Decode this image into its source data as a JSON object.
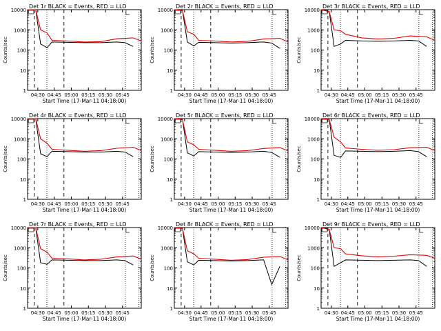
{
  "figure": {
    "common_xlabel": "Start Time (17-Mar-11 04:18:00)",
    "common_ylabel": "Counts/sec"
  },
  "chart_data": [
    {
      "type": "line",
      "title": "Det 1r BLACK = Events, RED = LLD",
      "xlabel": "Start Time (17-Mar-11 04:18:00)",
      "ylabel": "Counts/sec",
      "yscale": "log",
      "ylim": [
        1,
        10000
      ],
      "xlim": [
        4.25,
        4.95
      ],
      "x_ticks": [
        "04:30",
        "04:45",
        "05:00",
        "05:15",
        "05:30",
        "05:45"
      ],
      "y_ticks": [
        "1",
        "10",
        "100",
        "1000",
        "10000"
      ],
      "vlines_dotted": [
        4.5,
        5.5
      ],
      "vlines_dashed": [
        4.25,
        4.75
      ],
      "red_lld": [
        [
          4.25,
          10000
        ],
        [
          4.3,
          10000
        ],
        [
          4.33,
          1000
        ],
        [
          4.37,
          700
        ],
        [
          4.4,
          300
        ],
        [
          4.5,
          280
        ],
        [
          4.6,
          250
        ],
        [
          4.7,
          260
        ],
        [
          4.8,
          360
        ],
        [
          4.9,
          400
        ],
        [
          4.95,
          280
        ]
      ],
      "black_events": [
        [
          4.25,
          10000
        ],
        [
          4.3,
          10000
        ],
        [
          4.33,
          200
        ],
        [
          4.37,
          130
        ],
        [
          4.4,
          250
        ],
        [
          4.5,
          240
        ],
        [
          4.6,
          230
        ],
        [
          4.7,
          230
        ],
        [
          4.8,
          250
        ],
        [
          4.85,
          230
        ],
        [
          4.9,
          150
        ]
      ]
    },
    {
      "type": "line",
      "title": "Det 2r BLACK = Events, RED = LLD",
      "xlabel": "Start Time (17-Mar-11 04:18:00)",
      "ylabel": "Counts/sec",
      "yscale": "log",
      "ylim": [
        1,
        10000
      ],
      "xlim": [
        4.25,
        4.95
      ],
      "x_ticks": [
        "04:30",
        "04:45",
        "05:00",
        "05:15",
        "05:30",
        "05:45"
      ],
      "y_ticks": [
        "1",
        "10",
        "100",
        "1000",
        "10000"
      ],
      "vlines_dotted": [
        4.5,
        5.5
      ],
      "vlines_dashed": [
        4.25,
        4.75
      ],
      "red_lld": [
        [
          4.25,
          10000
        ],
        [
          4.3,
          9000
        ],
        [
          4.33,
          800
        ],
        [
          4.37,
          600
        ],
        [
          4.4,
          300
        ],
        [
          4.5,
          280
        ],
        [
          4.6,
          250
        ],
        [
          4.7,
          270
        ],
        [
          4.8,
          350
        ],
        [
          4.9,
          380
        ],
        [
          4.95,
          250
        ]
      ],
      "black_events": [
        [
          4.25,
          10000
        ],
        [
          4.3,
          9000
        ],
        [
          4.33,
          250
        ],
        [
          4.37,
          160
        ],
        [
          4.4,
          240
        ],
        [
          4.5,
          230
        ],
        [
          4.6,
          220
        ],
        [
          4.7,
          230
        ],
        [
          4.8,
          250
        ],
        [
          4.85,
          220
        ],
        [
          4.9,
          120
        ]
      ]
    },
    {
      "type": "line",
      "title": "Det 3r BLACK = Events, RED = LLD",
      "xlabel": "Start Time (17-Mar-11 04:18:00)",
      "ylabel": "Counts/sec",
      "yscale": "log",
      "ylim": [
        1,
        10000
      ],
      "xlim": [
        4.25,
        4.95
      ],
      "x_ticks": [
        "04:30",
        "04:45",
        "05:00",
        "05:15",
        "05:30",
        "05:45"
      ],
      "y_ticks": [
        "1",
        "10",
        "100",
        "1000",
        "10000"
      ],
      "vlines_dotted": [
        4.5,
        5.5
      ],
      "vlines_dashed": [
        4.25,
        4.75
      ],
      "red_lld": [
        [
          4.25,
          10000
        ],
        [
          4.3,
          8000
        ],
        [
          4.33,
          1000
        ],
        [
          4.37,
          900
        ],
        [
          4.4,
          600
        ],
        [
          4.5,
          400
        ],
        [
          4.6,
          350
        ],
        [
          4.7,
          380
        ],
        [
          4.8,
          500
        ],
        [
          4.9,
          450
        ],
        [
          4.95,
          300
        ]
      ],
      "black_events": [
        [
          4.25,
          10000
        ],
        [
          4.3,
          8000
        ],
        [
          4.33,
          150
        ],
        [
          4.37,
          200
        ],
        [
          4.4,
          300
        ],
        [
          4.5,
          280
        ],
        [
          4.6,
          270
        ],
        [
          4.7,
          280
        ],
        [
          4.8,
          300
        ],
        [
          4.85,
          280
        ],
        [
          4.9,
          150
        ]
      ]
    },
    {
      "type": "line",
      "title": "Det 4r BLACK = Events, RED = LLD",
      "xlabel": "Start Time (17-Mar-11 04:18:00)",
      "ylabel": "Counts/sec",
      "yscale": "log",
      "ylim": [
        1,
        10000
      ],
      "xlim": [
        4.25,
        4.95
      ],
      "x_ticks": [
        "04:30",
        "04:45",
        "05:00",
        "05:15",
        "05:30",
        "05:45"
      ],
      "y_ticks": [
        "1",
        "10",
        "100",
        "1000",
        "10000"
      ],
      "vlines_dotted": [
        4.5,
        5.5
      ],
      "vlines_dashed": [
        4.25,
        4.75
      ],
      "red_lld": [
        [
          4.25,
          10000
        ],
        [
          4.3,
          10000
        ],
        [
          4.33,
          1000
        ],
        [
          4.37,
          600
        ],
        [
          4.4,
          300
        ],
        [
          4.5,
          270
        ],
        [
          4.6,
          240
        ],
        [
          4.7,
          260
        ],
        [
          4.8,
          340
        ],
        [
          4.9,
          380
        ],
        [
          4.95,
          260
        ]
      ],
      "black_events": [
        [
          4.25,
          10000
        ],
        [
          4.3,
          10000
        ],
        [
          4.33,
          180
        ],
        [
          4.37,
          130
        ],
        [
          4.4,
          240
        ],
        [
          4.5,
          230
        ],
        [
          4.6,
          220
        ],
        [
          4.7,
          220
        ],
        [
          4.8,
          240
        ],
        [
          4.85,
          220
        ],
        [
          4.9,
          130
        ]
      ]
    },
    {
      "type": "line",
      "title": "Det 5r BLACK = Events, RED = LLD",
      "xlabel": "Start Time (17-Mar-11 04:18:00)",
      "ylabel": "Counts/sec",
      "yscale": "log",
      "ylim": [
        1,
        10000
      ],
      "xlim": [
        4.25,
        4.95
      ],
      "x_ticks": [
        "04:30",
        "04:45",
        "05:00",
        "05:15",
        "05:30",
        "05:45"
      ],
      "y_ticks": [
        "1",
        "10",
        "100",
        "1000",
        "10000"
      ],
      "vlines_dotted": [
        4.5,
        5.5
      ],
      "vlines_dashed": [
        4.25,
        4.75
      ],
      "red_lld": [
        [
          4.25,
          10000
        ],
        [
          4.3,
          9000
        ],
        [
          4.33,
          700
        ],
        [
          4.37,
          500
        ],
        [
          4.4,
          300
        ],
        [
          4.5,
          270
        ],
        [
          4.6,
          240
        ],
        [
          4.7,
          260
        ],
        [
          4.8,
          330
        ],
        [
          4.9,
          370
        ],
        [
          4.95,
          250
        ]
      ],
      "black_events": [
        [
          4.25,
          10000
        ],
        [
          4.3,
          9000
        ],
        [
          4.33,
          200
        ],
        [
          4.37,
          140
        ],
        [
          4.4,
          230
        ],
        [
          4.5,
          220
        ],
        [
          4.6,
          210
        ],
        [
          4.7,
          220
        ],
        [
          4.8,
          240
        ],
        [
          4.85,
          210
        ],
        [
          4.9,
          120
        ]
      ]
    },
    {
      "type": "line",
      "title": "Det 6r BLACK = Events, RED = LLD",
      "xlabel": "Start Time (17-Mar-11 04:18:00)",
      "ylabel": "Counts/sec",
      "yscale": "log",
      "ylim": [
        1,
        10000
      ],
      "xlim": [
        4.25,
        4.95
      ],
      "x_ticks": [
        "04:30",
        "04:45",
        "05:00",
        "05:15",
        "05:30",
        "05:45"
      ],
      "y_ticks": [
        "1",
        "10",
        "100",
        "1000",
        "10000"
      ],
      "vlines_dotted": [
        4.5,
        5.5
      ],
      "vlines_dashed": [
        4.25,
        4.75
      ],
      "red_lld": [
        [
          4.25,
          10000
        ],
        [
          4.3,
          9000
        ],
        [
          4.33,
          1200
        ],
        [
          4.37,
          700
        ],
        [
          4.4,
          350
        ],
        [
          4.5,
          300
        ],
        [
          4.6,
          270
        ],
        [
          4.7,
          290
        ],
        [
          4.8,
          360
        ],
        [
          4.9,
          380
        ],
        [
          4.95,
          260
        ]
      ],
      "black_events": [
        [
          4.25,
          10000
        ],
        [
          4.3,
          9000
        ],
        [
          4.33,
          150
        ],
        [
          4.37,
          120
        ],
        [
          4.4,
          250
        ],
        [
          4.5,
          240
        ],
        [
          4.6,
          230
        ],
        [
          4.7,
          240
        ],
        [
          4.8,
          260
        ],
        [
          4.85,
          230
        ],
        [
          4.9,
          130
        ]
      ]
    },
    {
      "type": "line",
      "title": "Det 7r BLACK = Events, RED = LLD",
      "xlabel": "Start Time (17-Mar-11 04:18:00)",
      "ylabel": "Counts/sec",
      "yscale": "log",
      "ylim": [
        1,
        10000
      ],
      "xlim": [
        4.25,
        4.95
      ],
      "x_ticks": [
        "04:30",
        "04:45",
        "05:00",
        "05:15",
        "05:30",
        "05:45"
      ],
      "y_ticks": [
        "1",
        "10",
        "100",
        "1000",
        "10000"
      ],
      "vlines_dotted": [
        4.5,
        5.5
      ],
      "vlines_dashed": [
        4.25,
        4.75
      ],
      "red_lld": [
        [
          4.25,
          10000
        ],
        [
          4.3,
          10000
        ],
        [
          4.33,
          900
        ],
        [
          4.37,
          600
        ],
        [
          4.4,
          300
        ],
        [
          4.5,
          280
        ],
        [
          4.6,
          250
        ],
        [
          4.7,
          270
        ],
        [
          4.8,
          350
        ],
        [
          4.9,
          390
        ],
        [
          4.95,
          270
        ]
      ],
      "black_events": [
        [
          4.25,
          10000
        ],
        [
          4.3,
          10000
        ],
        [
          4.33,
          180
        ],
        [
          4.37,
          150
        ],
        [
          4.4,
          250
        ],
        [
          4.5,
          240
        ],
        [
          4.6,
          230
        ],
        [
          4.7,
          230
        ],
        [
          4.8,
          250
        ],
        [
          4.85,
          230
        ],
        [
          4.9,
          140
        ]
      ]
    },
    {
      "type": "line",
      "title": "Det 8r BLACK = Events, RED = LLD",
      "xlabel": "Start Time (17-Mar-11 04:18:00)",
      "ylabel": "Counts/sec",
      "yscale": "log",
      "ylim": [
        1,
        10000
      ],
      "xlim": [
        4.25,
        4.95
      ],
      "x_ticks": [
        "04:30",
        "04:45",
        "05:00",
        "05:15",
        "05:30",
        "05:45"
      ],
      "y_ticks": [
        "1",
        "10",
        "100",
        "1000",
        "10000"
      ],
      "vlines_dotted": [
        4.5,
        5.5
      ],
      "vlines_dashed": [
        4.25,
        4.75
      ],
      "red_lld": [
        [
          4.25,
          10000
        ],
        [
          4.3,
          9000
        ],
        [
          4.33,
          700
        ],
        [
          4.37,
          500
        ],
        [
          4.4,
          300
        ],
        [
          4.5,
          270
        ],
        [
          4.6,
          240
        ],
        [
          4.7,
          260
        ],
        [
          4.8,
          340
        ],
        [
          4.9,
          370
        ],
        [
          4.95,
          250
        ]
      ],
      "black_events": [
        [
          4.25,
          10000
        ],
        [
          4.3,
          9000
        ],
        [
          4.33,
          200
        ],
        [
          4.37,
          140
        ],
        [
          4.4,
          240
        ],
        [
          4.5,
          230
        ],
        [
          4.6,
          220
        ],
        [
          4.7,
          230
        ],
        [
          4.8,
          250
        ],
        [
          4.85,
          15
        ],
        [
          4.9,
          120
        ]
      ]
    },
    {
      "type": "line",
      "title": "Det 9r BLACK = Events, RED = LLD",
      "xlabel": "Start Time (17-Mar-11 04:18:00)",
      "ylabel": "Counts/sec",
      "yscale": "log",
      "ylim": [
        1,
        10000
      ],
      "xlim": [
        4.25,
        4.95
      ],
      "x_ticks": [
        "04:30",
        "04:45",
        "05:00",
        "05:15",
        "05:30",
        "05:45"
      ],
      "y_ticks": [
        "1",
        "10",
        "100",
        "1000",
        "10000"
      ],
      "vlines_dotted": [
        4.5,
        5.5
      ],
      "vlines_dashed": [
        4.25,
        4.75
      ],
      "red_lld": [
        [
          4.25,
          10000
        ],
        [
          4.3,
          8000
        ],
        [
          4.33,
          1000
        ],
        [
          4.37,
          900
        ],
        [
          4.4,
          500
        ],
        [
          4.5,
          400
        ],
        [
          4.6,
          350
        ],
        [
          4.7,
          380
        ],
        [
          4.8,
          450
        ],
        [
          4.9,
          420
        ],
        [
          4.95,
          300
        ]
      ],
      "black_events": [
        [
          4.25,
          10000
        ],
        [
          4.3,
          8000
        ],
        [
          4.33,
          120
        ],
        [
          4.37,
          180
        ],
        [
          4.4,
          250
        ],
        [
          4.5,
          240
        ],
        [
          4.6,
          230
        ],
        [
          4.7,
          240
        ],
        [
          4.8,
          250
        ],
        [
          4.85,
          230
        ],
        [
          4.9,
          120
        ]
      ]
    }
  ]
}
